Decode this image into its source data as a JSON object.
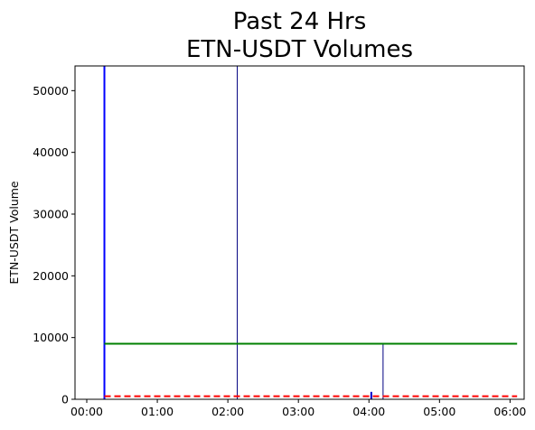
{
  "chart_data": {
    "type": "bar",
    "title_lines": [
      "Past 24 Hrs",
      "ETN-USDT Volumes"
    ],
    "xlabel": "",
    "ylabel": "ETN-USDT Volume",
    "x_ticks": [
      "00:00",
      "01:00",
      "02:00",
      "03:00",
      "04:00",
      "05:00",
      "06:00"
    ],
    "y_ticks": [
      0,
      10000,
      20000,
      30000,
      40000,
      50000
    ],
    "xlim_minutes": [
      -10,
      372
    ],
    "ylim": [
      0,
      54000
    ],
    "bars": [
      {
        "time_minutes": 15,
        "value": 54000,
        "color": "#0000ff",
        "width": 2
      },
      {
        "time_minutes": 128,
        "value": 54000,
        "color": "#000080",
        "width": 1
      },
      {
        "time_minutes": 242,
        "value": 1200,
        "color": "#0000cc",
        "width": 2
      },
      {
        "time_minutes": 252,
        "value": 9000,
        "color": "#000080",
        "width": 1
      }
    ],
    "reference_lines": [
      {
        "value": 9000,
        "start_minutes": 15,
        "end_minutes": 366,
        "color": "#008000",
        "style": "solid"
      },
      {
        "value": 500,
        "start_minutes": 15,
        "end_minutes": 366,
        "color": "#ff0000",
        "style": "dashed"
      }
    ],
    "grid": false,
    "legend": "none"
  }
}
